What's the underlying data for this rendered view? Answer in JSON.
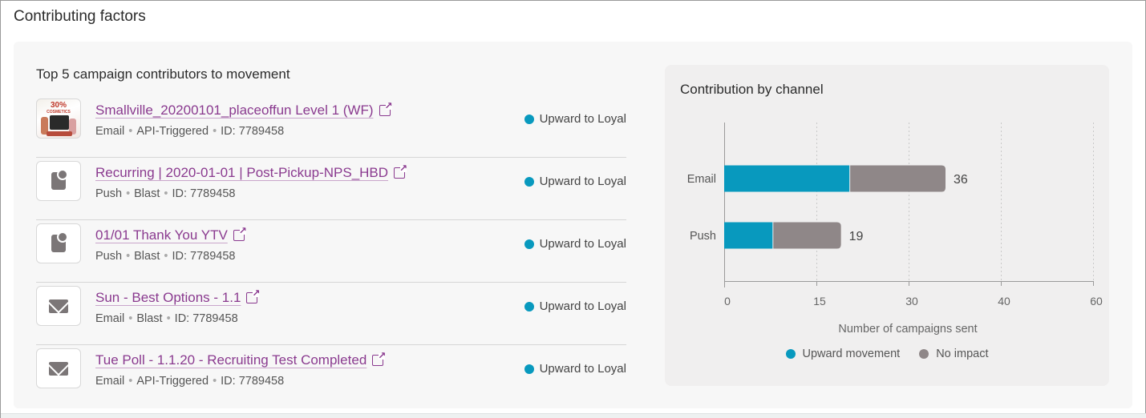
{
  "section_title": "Contributing factors",
  "list_title": "Top 5 campaign contributors to movement",
  "campaigns": [
    {
      "name": "Smallville_20200101_placeoffun Level 1 (WF)",
      "channel": "Email",
      "type": "API-Triggered",
      "id": "ID: 7789458",
      "status": "Upward to Loyal",
      "thumb": "image",
      "thumb_text": "30%",
      "thumb_subtext": "COSMETICS"
    },
    {
      "name": "Recurring | 2020-01-01 | Post-Pickup-NPS_HBD",
      "channel": "Push",
      "type": "Blast",
      "id": "ID: 7789458",
      "status": "Upward to Loyal",
      "thumb": "push-icon"
    },
    {
      "name": "01/01 Thank You YTV",
      "channel": "Push",
      "type": "Blast",
      "id": "ID: 7789458",
      "status": "Upward to Loyal",
      "thumb": "push-icon"
    },
    {
      "name": "Sun - Best Options - 1.1",
      "channel": "Email",
      "type": "Blast",
      "id": "ID: 7789458",
      "status": "Upward to Loyal",
      "thumb": "mail-icon"
    },
    {
      "name": "Tue Poll - 1.1.20 - Recruiting Test Completed",
      "channel": "Email",
      "type": "API-Triggered",
      "id": "ID: 7789458",
      "status": "Upward to Loyal",
      "thumb": "mail-icon"
    }
  ],
  "colors": {
    "upward": "#0899be",
    "no_impact": "#8f8788",
    "link": "#8a3a8f"
  },
  "chart_data": {
    "type": "bar",
    "orientation": "horizontal",
    "stacked": true,
    "title": "Contribution by channel",
    "categories": [
      "Email",
      "Push"
    ],
    "series": [
      {
        "name": "Upward movement",
        "values": [
          20.5,
          8
        ]
      },
      {
        "name": "No impact",
        "values": [
          15.5,
          11
        ]
      }
    ],
    "totals": [
      "36",
      "19"
    ],
    "xlabel": "Number of campaigns sent",
    "ylabel": "",
    "xlim": [
      0,
      60
    ],
    "xticks": [
      "0",
      "15",
      "30",
      "40",
      "60"
    ],
    "grid": true,
    "legend_position": "bottom"
  }
}
